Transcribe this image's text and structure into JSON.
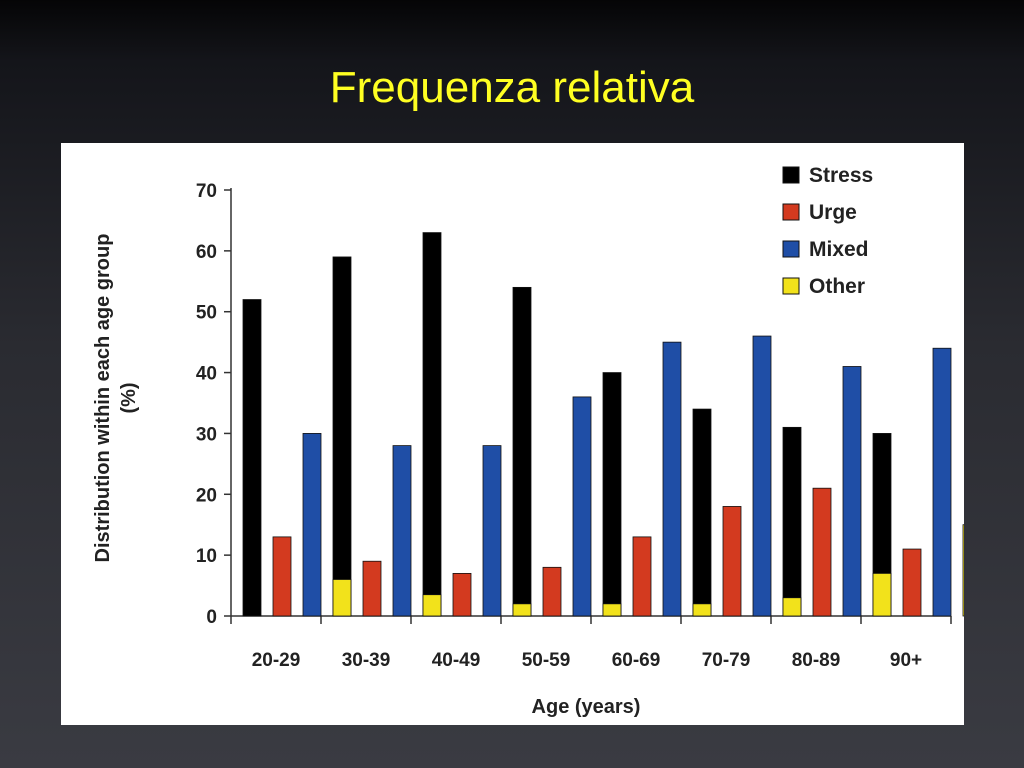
{
  "slide": {
    "title": "Frequenza relativa"
  },
  "chart_data": {
    "type": "bar",
    "title": "",
    "xlabel": "Age (years)",
    "ylabel": "Distribution within each age group (%)",
    "ylabel_lines": [
      "Distribution within each age group",
      "(%)"
    ],
    "ylim": [
      0,
      70
    ],
    "yticks": [
      0,
      10,
      20,
      30,
      40,
      50,
      60,
      70
    ],
    "grid": false,
    "legend_position": "top-right",
    "categories": [
      "20-29",
      "30-39",
      "40-49",
      "50-59",
      "60-69",
      "70-79",
      "80-89",
      "90+"
    ],
    "series": [
      {
        "name": "Stress",
        "color": "#000000",
        "values": [
          52,
          59,
          63,
          54,
          40,
          34,
          31,
          30
        ]
      },
      {
        "name": "Urge",
        "color": "#d33a1f",
        "values": [
          13,
          9,
          7,
          8,
          13,
          18,
          21,
          11
        ]
      },
      {
        "name": "Mixed",
        "color": "#1f4ea6",
        "values": [
          30,
          28,
          28,
          36,
          45,
          46,
          41,
          44
        ]
      },
      {
        "name": "Other",
        "color": "#f2e21b",
        "values": [
          6,
          3.5,
          2,
          2,
          2,
          3,
          7,
          15
        ]
      }
    ]
  }
}
